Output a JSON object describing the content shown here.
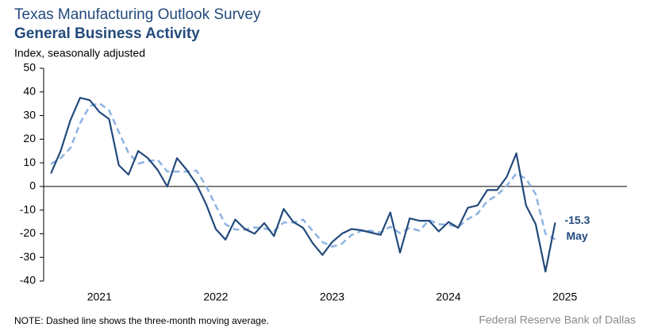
{
  "chart_data": {
    "type": "line",
    "title": "Texas Manufacturing Outlook Survey",
    "subtitle": "General Business Activity",
    "ylabel": "Index, seasonally adjusted",
    "note": "NOTE: Dashed line shows the three-month moving average.",
    "source": "Federal Reserve Bank of Dallas",
    "annotation": "May",
    "x": [
      "2021-01",
      "2021-02",
      "2021-03",
      "2021-04",
      "2021-05",
      "2021-06",
      "2021-07",
      "2021-08",
      "2021-09",
      "2021-10",
      "2021-11",
      "2021-12",
      "2022-01",
      "2022-02",
      "2022-03",
      "2022-04",
      "2022-05",
      "2022-06",
      "2022-07",
      "2022-08",
      "2022-09",
      "2022-10",
      "2022-11",
      "2022-12",
      "2023-01",
      "2023-02",
      "2023-03",
      "2023-04",
      "2023-05",
      "2023-06",
      "2023-07",
      "2023-08",
      "2023-09",
      "2023-10",
      "2023-11",
      "2023-12",
      "2024-01",
      "2024-02",
      "2024-03",
      "2024-04",
      "2024-05",
      "2024-06",
      "2024-07",
      "2024-08",
      "2024-09",
      "2024-10",
      "2024-11",
      "2024-12",
      "2025-01",
      "2025-02",
      "2025-03",
      "2025-04",
      "2025-05"
    ],
    "series": [
      {
        "color": "#234a7c",
        "dashed": false,
        "values": [
          5.5,
          15,
          28,
          37.5,
          36.5,
          31.5,
          28.5,
          9,
          5,
          15,
          12,
          7,
          0,
          12,
          7,
          1,
          -7.5,
          -18,
          -22.5,
          -14,
          -18,
          -20,
          -15.5,
          -21,
          -9.5,
          -15,
          -17.5,
          -24,
          -29,
          -23.5,
          -20,
          -18,
          -18.5,
          -19.5,
          -20.5,
          -11,
          -28,
          -13.5,
          -14.5,
          -14.5,
          -19,
          -15,
          -17.5,
          -9,
          -8,
          -1.5,
          -1.5,
          4,
          14,
          -8,
          -16,
          -36,
          -15.3
        ]
      },
      {
        "color": "#8db3e2",
        "dashed": true,
        "values": [
          9.5,
          12,
          16.2,
          26.8,
          34,
          35.2,
          32.2,
          23,
          14.2,
          9.7,
          10.7,
          11.3,
          6.3,
          6.3,
          6.3,
          6.7,
          0.2,
          -8.2,
          -16,
          -18.2,
          -18.2,
          -17.3,
          -17.8,
          -18.8,
          -15.3,
          -15.2,
          -14,
          -18.8,
          -23.5,
          -25.5,
          -24.2,
          -20.5,
          -18.8,
          -18.7,
          -19.5,
          -17,
          -19.8,
          -17.5,
          -18.7,
          -14.2,
          -16,
          -16.2,
          -17.2,
          -13.8,
          -11.5,
          -6.2,
          -3.7,
          0.3,
          5.5,
          3.3,
          -3.3,
          -20,
          -22.4
        ]
      }
    ],
    "xlim": [
      "2020-12",
      "2025-12"
    ],
    "xticks": [
      {
        "value": "2021-06",
        "label": "2021"
      },
      {
        "value": "2022-06",
        "label": "2022"
      },
      {
        "value": "2023-06",
        "label": "2023"
      },
      {
        "value": "2024-06",
        "label": "2024"
      },
      {
        "value": "2025-06",
        "label": "2025"
      }
    ],
    "ylim": [
      -40,
      50
    ],
    "yticks": [
      -40,
      -30,
      -20,
      -10,
      0,
      10,
      20,
      30,
      40,
      50
    ]
  }
}
